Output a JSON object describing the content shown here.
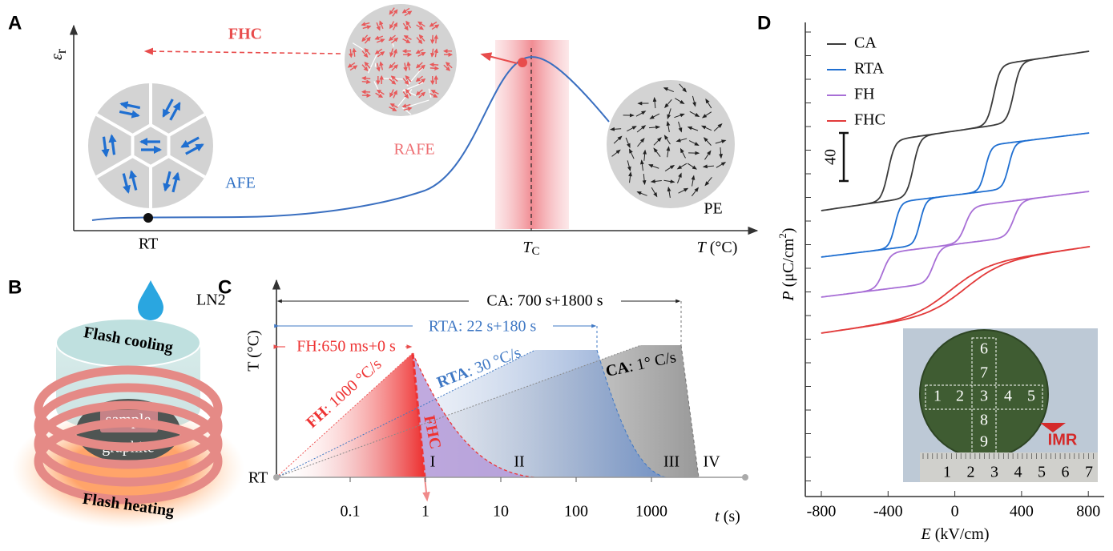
{
  "panel_a": {
    "label": "A",
    "y_symbol": "ε",
    "y_subscript": "r",
    "arrow_label": "FHC",
    "phase_labels": [
      "AFE",
      "RAFE",
      "PE"
    ],
    "x_tick": "RT",
    "tc_symbol": "T",
    "tc_subscript": "C",
    "x_symbol": "T",
    "x_unit": " (°C)"
  },
  "panel_b": {
    "label": "B",
    "coolant": "LN2",
    "top_label": "Flash cooling",
    "sample": "sample",
    "substrate": "graphite",
    "bottom_label": "Flash heating"
  },
  "panel_c": {
    "label": "C",
    "y_label": "T (°C)",
    "x_symbol": "t",
    "x_unit": " (s)",
    "x_ticks": [
      "0.1",
      "1",
      "10",
      "100",
      "1000"
    ],
    "start": "RT",
    "spans": [
      "CA: 700 s+1800 s",
      "RTA: 22 s+180 s",
      "FH:650 ms+0 s"
    ],
    "rates": [
      {
        "name": "FH",
        "text": ": 1000 °C/s"
      },
      {
        "name": "RTA",
        "text": ": 30 °C/s"
      },
      {
        "name": "CA",
        "text": ": 1° C/s"
      }
    ],
    "quench_label": "FHC",
    "stages": [
      "I",
      "II",
      "III",
      "IV"
    ]
  },
  "panel_d": {
    "label": "D",
    "legend": [
      "CA",
      "RTA",
      "FH",
      "FHC"
    ],
    "scale_label": "40",
    "y_symbol": "P",
    "y_unit": " (μC/cm",
    "y_unit_exp": "2",
    "y_unit_close": ")",
    "x_symbol": "E",
    "x_unit": " (kV/cm)",
    "x_ticks": [
      "-800",
      "-400",
      "0",
      "400",
      "800"
    ],
    "wafer_labels": [
      "1",
      "2",
      "3",
      "4",
      "5",
      "6",
      "7",
      "8",
      "9"
    ],
    "ruler_labels": [
      "1",
      "2",
      "3",
      "4",
      "5",
      "6",
      "7"
    ],
    "logo": "IMR"
  }
}
